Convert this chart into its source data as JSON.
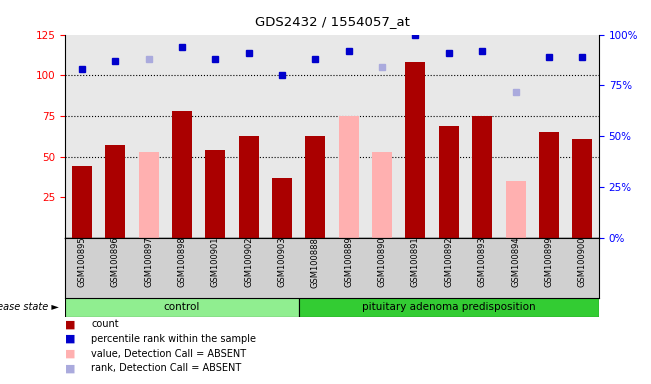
{
  "title": "GDS2432 / 1554057_at",
  "samples": [
    "GSM100895",
    "GSM100896",
    "GSM100897",
    "GSM100898",
    "GSM100901",
    "GSM100902",
    "GSM100903",
    "GSM100888",
    "GSM100889",
    "GSM100890",
    "GSM100891",
    "GSM100892",
    "GSM100893",
    "GSM100894",
    "GSM100899",
    "GSM100900"
  ],
  "count_values": [
    44,
    57,
    null,
    78,
    54,
    63,
    37,
    63,
    null,
    null,
    108,
    69,
    75,
    null,
    65,
    61
  ],
  "absent_value_values": [
    null,
    null,
    53,
    null,
    null,
    null,
    null,
    null,
    75,
    53,
    null,
    null,
    null,
    35,
    null,
    null
  ],
  "percentile_rank_values": [
    83,
    87,
    null,
    94,
    88,
    91,
    80,
    88,
    92,
    null,
    100,
    91,
    92,
    null,
    89,
    89
  ],
  "absent_rank_values": [
    null,
    null,
    88,
    null,
    null,
    null,
    null,
    null,
    null,
    84,
    null,
    null,
    null,
    72,
    null,
    null
  ],
  "ylim_left": [
    0,
    125
  ],
  "ylim_right": [
    0,
    100
  ],
  "yticks_left": [
    25,
    50,
    75,
    100,
    125
  ],
  "yticks_right": [
    0,
    25,
    50,
    75,
    100
  ],
  "ytick_labels_right": [
    "0%",
    "25%",
    "50%",
    "75%",
    "100%"
  ],
  "control_color": "#90EE90",
  "pituitary_color": "#33CC33",
  "bar_color_red": "#AA0000",
  "bar_color_pink": "#FFB0B0",
  "dot_color_blue": "#0000CC",
  "dot_color_lightblue": "#AAAADD",
  "grid_values": [
    50,
    75,
    100
  ],
  "disease_state_label": "disease state",
  "control_label": "control",
  "pituitary_label": "pituitary adenoma predisposition",
  "legend_items": [
    "count",
    "percentile rank within the sample",
    "value, Detection Call = ABSENT",
    "rank, Detection Call = ABSENT"
  ],
  "n_control": 7,
  "n_total": 16
}
